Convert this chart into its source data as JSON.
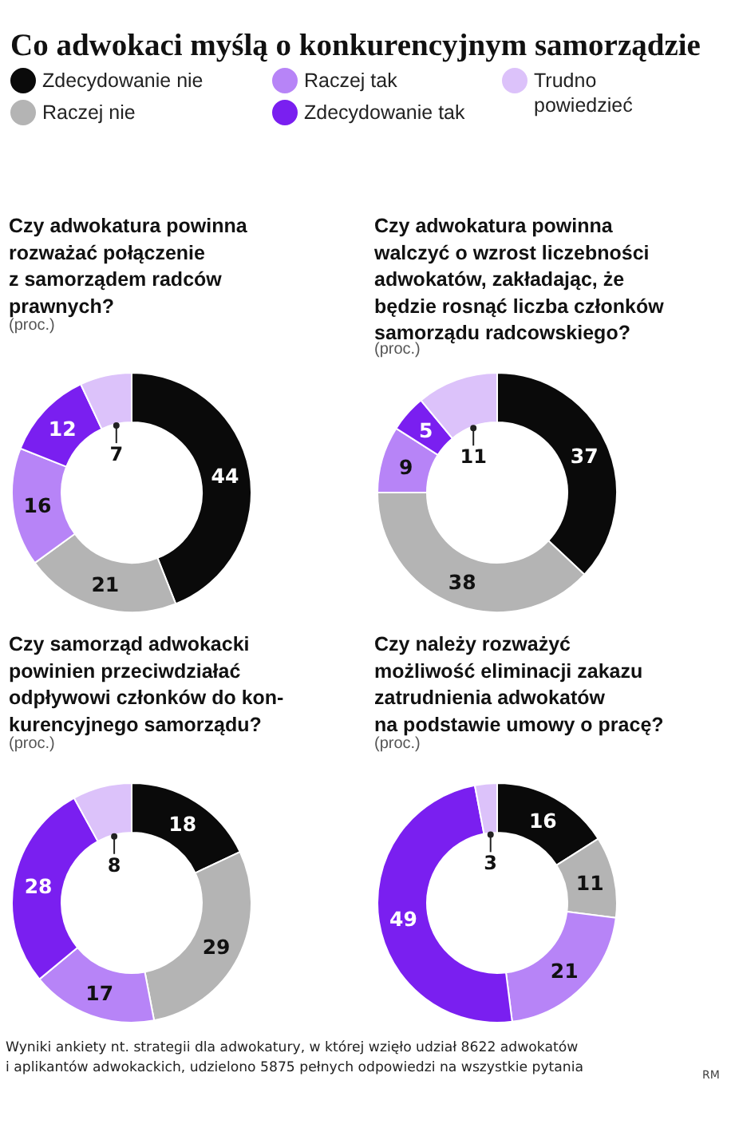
{
  "chart_data": [
    {
      "type": "other",
      "title": "Co adwokaci myślą o konkurencyjnym samorządzie",
      "annotations": [
        "Wyniki ankiety nt. strategii dla adwokatury, w której wzięło udział 8622 adwokatów\ni aplikantów adwokackich, udzielono 5875 pełnych odpowiedzi na wszystkie pytania",
        "RM"
      ]
    },
    {
      "type": "donut",
      "title": "Czy adwokatura powinna\nrozważać połączenie\nz samorządem radców\nprawnych?",
      "subtitle": "(proc.)",
      "legend": "top",
      "data_labels": true,
      "categories": [
        "Zdecydowanie nie",
        "Raczej nie",
        "Raczej tak",
        "Zdecydowanie tak",
        "Trudno\npowiedzieć"
      ],
      "values": [
        44,
        21,
        16,
        12,
        7
      ],
      "colors": [
        "#0a0a0a",
        "#b4b4b4",
        "#b784f7",
        "#7a1ff0",
        "#dcc2fa"
      ]
    },
    {
      "type": "donut",
      "title": "Czy adwokatura powinna\nwalczyć o wzrost liczebności\nadwokatów, zakładając, że\nbędzie rosnąć liczba członków\nsamorządu radcowskiego?",
      "subtitle": "(proc.)",
      "data_labels": true,
      "values": [
        37,
        38,
        9,
        5,
        11
      ],
      "colors": [
        "#0a0a0a",
        "#b4b4b4",
        "#b784f7",
        "#7a1ff0",
        "#dcc2fa"
      ]
    },
    {
      "type": "donut",
      "title": "Czy samorząd adwokacki\npowinien przeciwdziałać\nodpływowi członków do kon-\nkurencyjnego samorządu?",
      "subtitle": "(proc.)",
      "data_labels": true,
      "values": [
        18,
        29,
        17,
        28,
        8
      ],
      "colors": [
        "#0a0a0a",
        "#b4b4b4",
        "#b784f7",
        "#7a1ff0",
        "#dcc2fa"
      ]
    },
    {
      "type": "donut",
      "title": "Czy należy rozważyć\nmożliwość eliminacji zakazu\nzatrudnienia adwokatów\nna podstawie umowy o pracę?",
      "subtitle": "(proc.)",
      "data_labels": true,
      "values": [
        16,
        11,
        21,
        49,
        3
      ],
      "colors": [
        "#0a0a0a",
        "#b4b4b4",
        "#b784f7",
        "#7a1ff0",
        "#dcc2fa"
      ]
    }
  ]
}
